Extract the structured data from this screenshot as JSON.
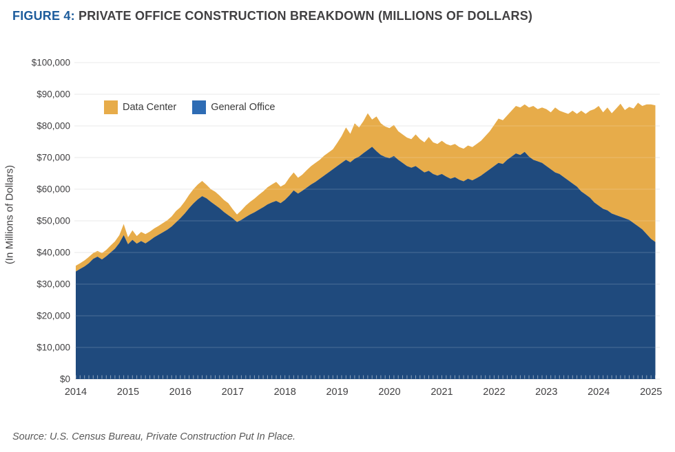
{
  "header": {
    "figure_label": "FIGURE 4:",
    "title": "PRIVATE OFFICE CONSTRUCTION BREAKDOWN (MILLIONS OF DOLLARS)"
  },
  "colors": {
    "figure_label_blue": "#1D5C9C",
    "title_gray": "#414042",
    "general_office_area": "#1F4A7D",
    "data_center_area": "#E7AC4A",
    "general_office_legend": "#2E6CB4",
    "data_center_legend": "#E7AC4A",
    "gridline": "#E4E4E4",
    "gridline_overlay": "rgba(255,255,255,0.20)",
    "month_tick": "rgba(255,255,255,0.50)",
    "axis_text": "#414042",
    "source_text": "#595959"
  },
  "legend": {
    "items": [
      {
        "label": "Data Center",
        "swatch": "#E7AC4A"
      },
      {
        "label": "General Office",
        "swatch": "#2E6CB4"
      }
    ]
  },
  "y_axis": {
    "title": "(In Millions of Dollars)",
    "tick_labels": [
      "$0",
      "$10,000",
      "$20,000",
      "$30,000",
      "$40,000",
      "$50,000",
      "$60,000",
      "$70,000",
      "$80,000",
      "$90,000",
      "$100,000"
    ]
  },
  "x_axis": {
    "tick_labels": [
      "2014",
      "2015",
      "2016",
      "2017",
      "2018",
      "2019",
      "2020",
      "2021",
      "2022",
      "2023",
      "2024",
      "2025"
    ]
  },
  "source": "Source: U.S. Census Bureau, Private Construction Put In Place.",
  "chart_data": {
    "type": "area",
    "stacked": true,
    "title": "FIGURE 4: PRIVATE OFFICE CONSTRUCTION BREAKDOWN (MILLIONS OF DOLLARS)",
    "ylabel": "(In Millions of Dollars)",
    "unit": "millions of dollars",
    "frequency": "monthly",
    "x_start": "2014-01",
    "x_end": "2025-02",
    "x_year_ticks": [
      2014,
      2015,
      2016,
      2017,
      2018,
      2019,
      2020,
      2021,
      2022,
      2023,
      2024,
      2025
    ],
    "ylim": [
      0,
      100000
    ],
    "grid": "horizontal",
    "legend_position": "top-left inside plot",
    "series": [
      {
        "name": "General Office",
        "color": "#1F4A7D",
        "values": [
          34000,
          34800,
          35600,
          36600,
          38000,
          38700,
          37800,
          38800,
          40000,
          41200,
          43000,
          45500,
          42600,
          44000,
          42800,
          43600,
          42900,
          43800,
          44800,
          45600,
          46400,
          47200,
          48200,
          49500,
          50800,
          52300,
          54000,
          55500,
          56800,
          57800,
          57100,
          56000,
          55000,
          54000,
          52800,
          51800,
          50800,
          49600,
          50300,
          51200,
          52000,
          52700,
          53500,
          54300,
          55200,
          55800,
          56300,
          55600,
          56600,
          58000,
          59600,
          58600,
          59500,
          60500,
          61500,
          62300,
          63300,
          64300,
          65300,
          66300,
          67300,
          68300,
          69300,
          68500,
          69600,
          70300,
          71400,
          72400,
          73400,
          72000,
          70800,
          70200,
          69800,
          70500,
          69300,
          68300,
          67300,
          66800,
          67300,
          66300,
          65300,
          65800,
          64800,
          64300,
          64800,
          64000,
          63300,
          63800,
          63000,
          62500,
          63300,
          62800,
          63500,
          64300,
          65300,
          66300,
          67300,
          68300,
          68000,
          69300,
          70300,
          71300,
          70800,
          71800,
          70300,
          69300,
          68800,
          68300,
          67300,
          66300,
          65300,
          64800,
          63800,
          62800,
          61800,
          60800,
          59300,
          58300,
          57300,
          55800,
          54800,
          53800,
          53300,
          52300,
          51800,
          51300,
          50800,
          50300,
          49300,
          48300,
          47300,
          45800,
          44300,
          43300
        ]
      },
      {
        "name": "Data Center",
        "color": "#E7AC4A",
        "values": [
          1800,
          1800,
          1900,
          2000,
          1800,
          1800,
          2000,
          2000,
          2200,
          2300,
          2500,
          3500,
          2200,
          3000,
          2400,
          2900,
          2900,
          2800,
          2800,
          2800,
          2900,
          3000,
          3200,
          3600,
          3500,
          3800,
          4200,
          4500,
          4700,
          4800,
          4300,
          4000,
          4200,
          4000,
          3800,
          3800,
          2900,
          2400,
          3000,
          3600,
          4000,
          4300,
          4700,
          5000,
          5400,
          5700,
          6000,
          5200,
          5000,
          5600,
          5700,
          5000,
          5100,
          5500,
          5800,
          6000,
          6000,
          6300,
          6300,
          6300,
          7300,
          8500,
          10200,
          9000,
          11200,
          9200,
          10100,
          11600,
          8600,
          11000,
          10000,
          9600,
          9500,
          9800,
          9000,
          9000,
          9000,
          9000,
          10000,
          9500,
          9500,
          10700,
          10000,
          10000,
          10500,
          10300,
          10500,
          10500,
          10300,
          10300,
          10500,
          10500,
          10800,
          11000,
          11500,
          12000,
          13000,
          14000,
          13800,
          14000,
          14500,
          15000,
          15000,
          15000,
          15500,
          17000,
          16500,
          17500,
          18000,
          18000,
          20500,
          20000,
          20500,
          21000,
          23000,
          23000,
          25500,
          25500,
          27500,
          29500,
          31500,
          30500,
          32500,
          31700,
          33700,
          35700,
          34200,
          35700,
          36200,
          39000,
          39000,
          41000,
          42500,
          43200
        ]
      }
    ]
  }
}
